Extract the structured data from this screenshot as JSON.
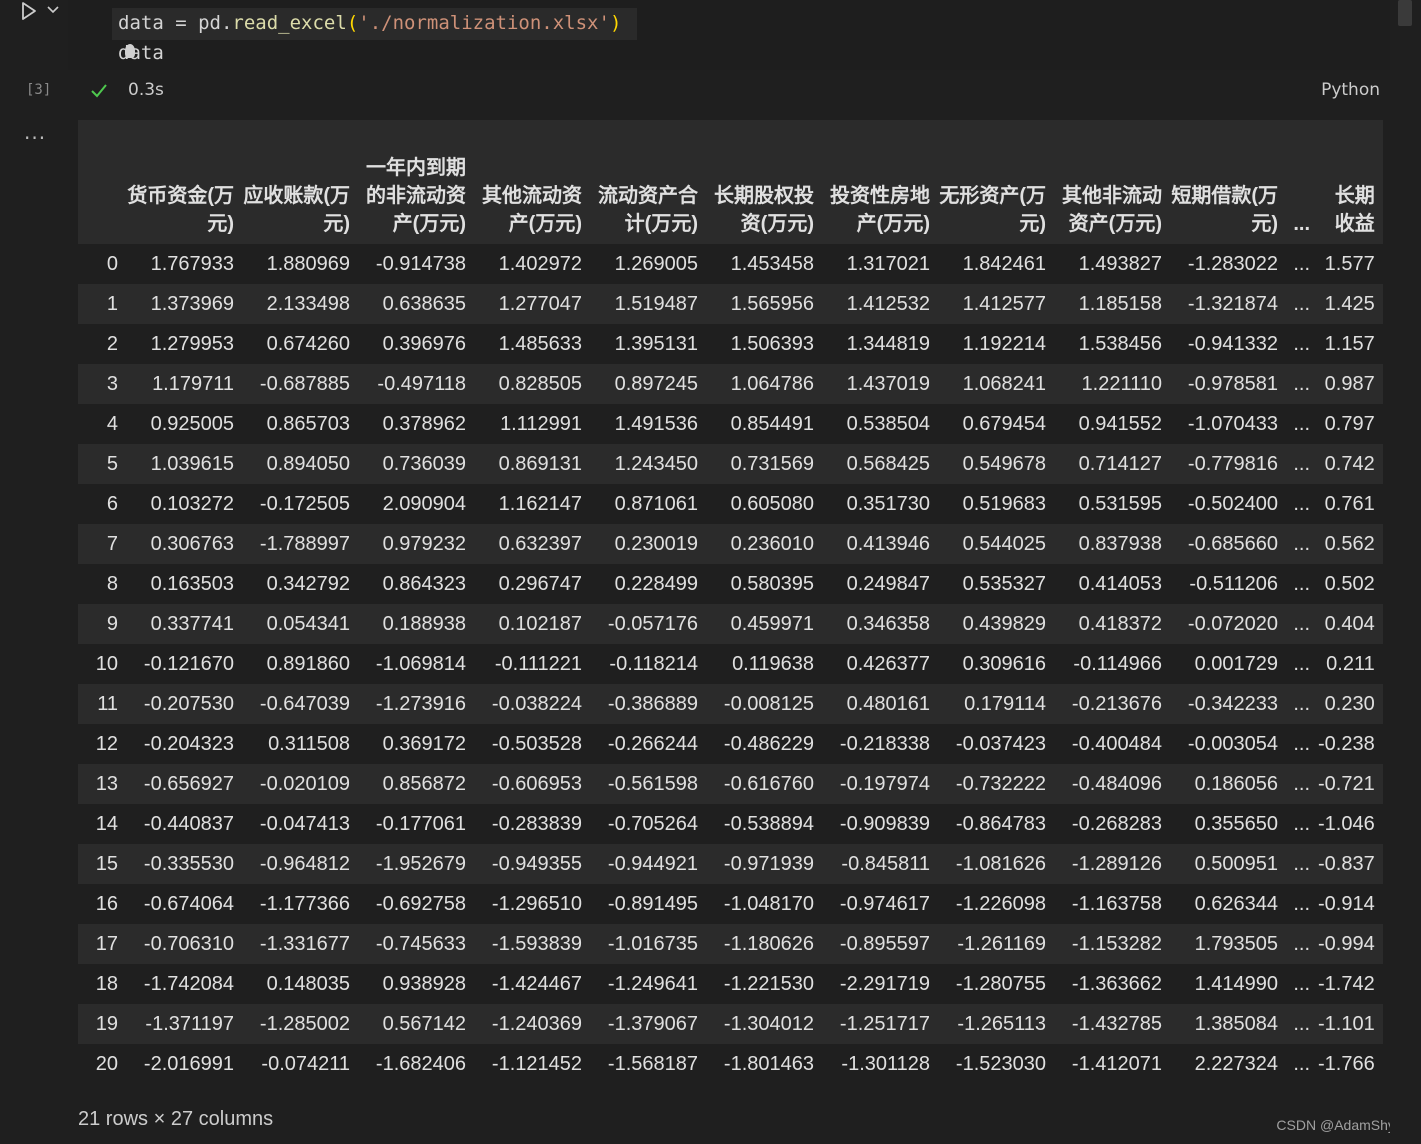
{
  "cell": {
    "execution_count": "[3]",
    "exec_time": "0.3s",
    "language": "Python",
    "code_line_1_var": "data",
    "code_line_1_op": " = ",
    "code_line_1_mod": "pd.",
    "code_line_1_fn": "read_excel",
    "code_line_1_open": "(",
    "code_line_1_str": "'./normalization.xlsx'",
    "code_line_1_close": ")",
    "code_line_2": "data",
    "more_label": "..."
  },
  "table": {
    "columns": [
      "货币资金(万元)",
      "应收账款(万元)",
      "一年内到期的非流动资产(万元)",
      "其他流动资产(万元)",
      "流动资产合计(万元)",
      "长期股权投资(万元)",
      "投资性房地产(万元)",
      "无形资产(万元)",
      "其他非流动资产(万元)",
      "短期借款(万元)",
      "...",
      "长期收益"
    ],
    "rows": [
      [
        "0",
        "1.767933",
        "1.880969",
        "-0.914738",
        "1.402972",
        "1.269005",
        "1.453458",
        "1.317021",
        "1.842461",
        "1.493827",
        "-1.283022",
        "...",
        "1.577"
      ],
      [
        "1",
        "1.373969",
        "2.133498",
        "0.638635",
        "1.277047",
        "1.519487",
        "1.565956",
        "1.412532",
        "1.412577",
        "1.185158",
        "-1.321874",
        "...",
        "1.425"
      ],
      [
        "2",
        "1.279953",
        "0.674260",
        "0.396976",
        "1.485633",
        "1.395131",
        "1.506393",
        "1.344819",
        "1.192214",
        "1.538456",
        "-0.941332",
        "...",
        "1.157"
      ],
      [
        "3",
        "1.179711",
        "-0.687885",
        "-0.497118",
        "0.828505",
        "0.897245",
        "1.064786",
        "1.437019",
        "1.068241",
        "1.221110",
        "-0.978581",
        "...",
        "0.987"
      ],
      [
        "4",
        "0.925005",
        "0.865703",
        "0.378962",
        "1.112991",
        "1.491536",
        "0.854491",
        "0.538504",
        "0.679454",
        "0.941552",
        "-1.070433",
        "...",
        "0.797"
      ],
      [
        "5",
        "1.039615",
        "0.894050",
        "0.736039",
        "0.869131",
        "1.243450",
        "0.731569",
        "0.568425",
        "0.549678",
        "0.714127",
        "-0.779816",
        "...",
        "0.742"
      ],
      [
        "6",
        "0.103272",
        "-0.172505",
        "2.090904",
        "1.162147",
        "0.871061",
        "0.605080",
        "0.351730",
        "0.519683",
        "0.531595",
        "-0.502400",
        "...",
        "0.761"
      ],
      [
        "7",
        "0.306763",
        "-1.788997",
        "0.979232",
        "0.632397",
        "0.230019",
        "0.236010",
        "0.413946",
        "0.544025",
        "0.837938",
        "-0.685660",
        "...",
        "0.562"
      ],
      [
        "8",
        "0.163503",
        "0.342792",
        "0.864323",
        "0.296747",
        "0.228499",
        "0.580395",
        "0.249847",
        "0.535327",
        "0.414053",
        "-0.511206",
        "...",
        "0.502"
      ],
      [
        "9",
        "0.337741",
        "0.054341",
        "0.188938",
        "0.102187",
        "-0.057176",
        "0.459971",
        "0.346358",
        "0.439829",
        "0.418372",
        "-0.072020",
        "...",
        "0.404"
      ],
      [
        "10",
        "-0.121670",
        "0.891860",
        "-1.069814",
        "-0.111221",
        "-0.118214",
        "0.119638",
        "0.426377",
        "0.309616",
        "-0.114966",
        "0.001729",
        "...",
        "0.211"
      ],
      [
        "11",
        "-0.207530",
        "-0.647039",
        "-1.273916",
        "-0.038224",
        "-0.386889",
        "-0.008125",
        "0.480161",
        "0.179114",
        "-0.213676",
        "-0.342233",
        "...",
        "0.230"
      ],
      [
        "12",
        "-0.204323",
        "0.311508",
        "0.369172",
        "-0.503528",
        "-0.266244",
        "-0.486229",
        "-0.218338",
        "-0.037423",
        "-0.400484",
        "-0.003054",
        "...",
        "-0.238"
      ],
      [
        "13",
        "-0.656927",
        "-0.020109",
        "0.856872",
        "-0.606953",
        "-0.561598",
        "-0.616760",
        "-0.197974",
        "-0.732222",
        "-0.484096",
        "0.186056",
        "...",
        "-0.721"
      ],
      [
        "14",
        "-0.440837",
        "-0.047413",
        "-0.177061",
        "-0.283839",
        "-0.705264",
        "-0.538894",
        "-0.909839",
        "-0.864783",
        "-0.268283",
        "0.355650",
        "...",
        "-1.046"
      ],
      [
        "15",
        "-0.335530",
        "-0.964812",
        "-1.952679",
        "-0.949355",
        "-0.944921",
        "-0.971939",
        "-0.845811",
        "-1.081626",
        "-1.289126",
        "0.500951",
        "...",
        "-0.837"
      ],
      [
        "16",
        "-0.674064",
        "-1.177366",
        "-0.692758",
        "-1.296510",
        "-0.891495",
        "-1.048170",
        "-0.974617",
        "-1.226098",
        "-1.163758",
        "0.626344",
        "...",
        "-0.914"
      ],
      [
        "17",
        "-0.706310",
        "-1.331677",
        "-0.745633",
        "-1.593839",
        "-1.016735",
        "-1.180626",
        "-0.895597",
        "-1.261169",
        "-1.153282",
        "1.793505",
        "...",
        "-0.994"
      ],
      [
        "18",
        "-1.742084",
        "0.148035",
        "0.938928",
        "-1.424467",
        "-1.249641",
        "-1.221530",
        "-2.291719",
        "-1.280755",
        "-1.363662",
        "1.414990",
        "...",
        "-1.742"
      ],
      [
        "19",
        "-1.371197",
        "-1.285002",
        "0.567142",
        "-1.240369",
        "-1.379067",
        "-1.304012",
        "-1.251717",
        "-1.265113",
        "-1.432785",
        "1.385084",
        "...",
        "-1.101"
      ],
      [
        "20",
        "-2.016991",
        "-0.074211",
        "-1.682406",
        "-1.121452",
        "-1.568187",
        "-1.801463",
        "-1.301128",
        "-1.523030",
        "-1.412071",
        "2.227324",
        "...",
        "-1.766"
      ]
    ],
    "footer": "21 rows × 27 columns"
  },
  "watermark": "CSDN @AdamShyly",
  "colors": {
    "background": "#1f1f1f",
    "header_row": "#2b2b2b",
    "check": "#4ec94e"
  }
}
